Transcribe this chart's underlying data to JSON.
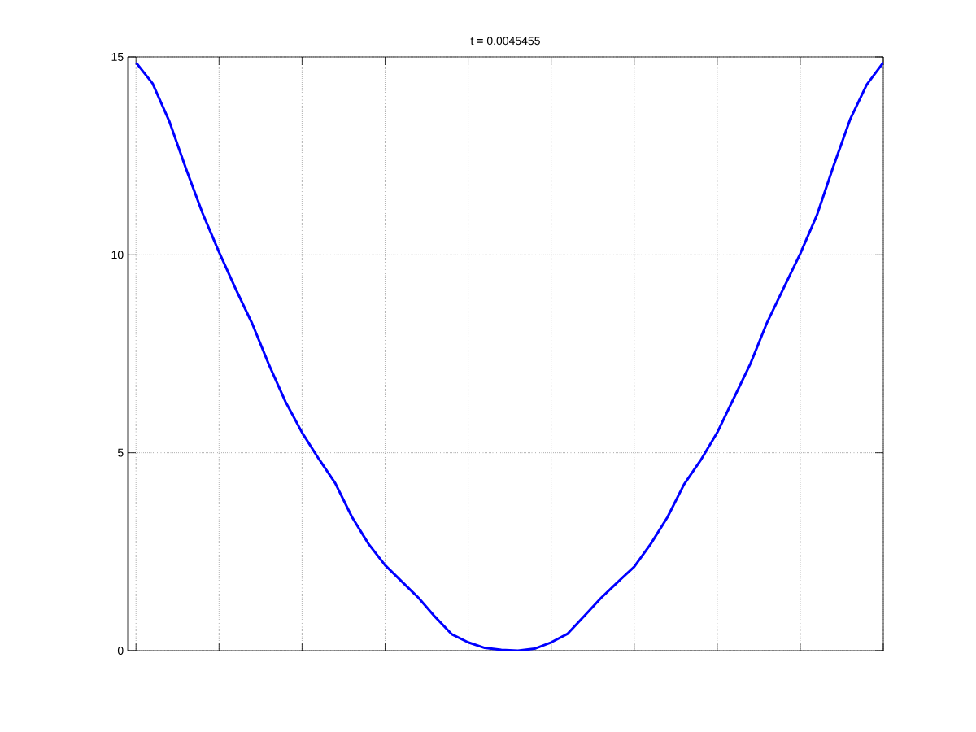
{
  "chart_data": {
    "type": "line",
    "title": "t = 0.0045455",
    "categories": [
      null,
      null,
      null,
      null,
      null,
      null,
      null,
      null,
      null,
      null,
      null,
      null,
      null,
      null,
      null,
      null,
      null,
      null,
      null,
      null,
      null,
      null,
      null,
      null,
      null,
      null,
      null,
      null,
      null,
      null,
      null,
      null,
      null,
      null,
      null,
      null,
      null,
      null,
      null,
      null,
      null,
      null,
      null,
      null,
      null,
      null
    ],
    "series": [
      {
        "color": "#0000ff",
        "values": [
          14.86,
          14.33,
          13.38,
          12.19,
          11.06,
          10.07,
          9.14,
          8.26,
          7.23,
          6.29,
          5.51,
          4.85,
          4.23,
          3.38,
          2.7,
          2.16,
          1.75,
          1.34,
          0.86,
          0.42,
          0.21,
          0.07,
          0.02,
          0.0,
          0.05,
          0.21,
          0.43,
          0.88,
          1.33,
          1.73,
          2.12,
          2.7,
          3.37,
          4.2,
          4.81,
          5.51,
          6.38,
          7.25,
          8.29,
          9.16,
          10.03,
          11.0,
          12.24,
          13.42,
          14.3,
          14.86
        ]
      }
    ],
    "ylim": [
      0,
      15
    ],
    "yticks": [
      0,
      5,
      10,
      15
    ],
    "grid": true,
    "marker": "none",
    "line_style": "solid"
  }
}
